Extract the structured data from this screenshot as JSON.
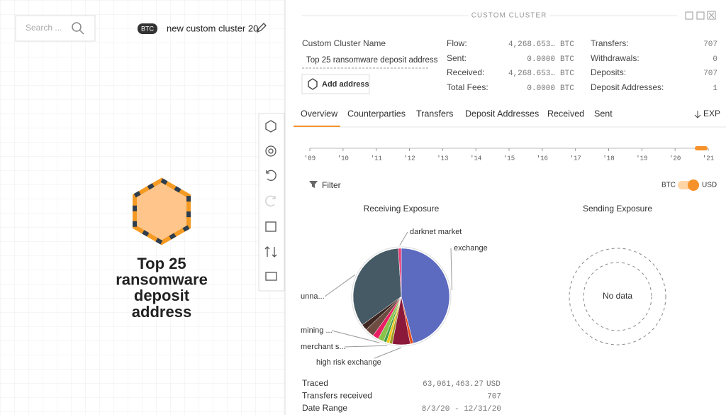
{
  "search": {
    "placeholder": "Search ..."
  },
  "cluster_tab": {
    "badge": "BTC",
    "name": "new custom cluster 20"
  },
  "graph_node": {
    "label_lines": [
      "Top 25",
      "ransomware",
      "deposit",
      "address"
    ]
  },
  "panel": {
    "title": "CUSTOM CLUSTER",
    "name_label": "Custom Cluster Name",
    "name_value": "Top 25 ransomware deposit address",
    "add_button": "Add address",
    "stats": [
      {
        "label": "Flow:",
        "value": "4,268.653…",
        "unit": "BTC"
      },
      {
        "label": "Sent:",
        "value": "0.0000",
        "unit": "BTC"
      },
      {
        "label": "Received:",
        "value": "4,268.653…",
        "unit": "BTC"
      },
      {
        "label": "Total Fees:",
        "value": "0.0000",
        "unit": "BTC"
      }
    ],
    "counts": [
      {
        "label": "Transfers:",
        "value": 707
      },
      {
        "label": "Withdrawals:",
        "value": 0
      },
      {
        "label": "Deposits:",
        "value": 707
      },
      {
        "label": "Deposit Addresses:",
        "value": 1
      }
    ],
    "tabs": [
      "Overview",
      "Counterparties",
      "Transfers",
      "Deposit Addresses",
      "Received",
      "Sent"
    ],
    "export": "EXP",
    "timeline": [
      "'09",
      "'10",
      "'11",
      "'12",
      "'13",
      "'14",
      "'15",
      "'16",
      "'17",
      "'18",
      "'19",
      "'20",
      "'21"
    ],
    "filter": "Filter",
    "toggle": {
      "left": "BTC",
      "right": "USD"
    },
    "sending": {
      "title": "Sending Exposure",
      "empty": "No data"
    },
    "summary": [
      {
        "label": "Traced",
        "value": "63,061,463.27",
        "unit": "USD"
      },
      {
        "label": "Transfers received",
        "value": "707"
      },
      {
        "label": "Date Range",
        "value": "8/3/20 - 12/31/20"
      }
    ]
  },
  "chart_data": {
    "type": "pie",
    "title": "Receiving Exposure",
    "categories": [
      "exchange",
      null,
      "high risk exchange",
      null,
      "merchant s...",
      null,
      "mining ...",
      null,
      null,
      null,
      "unna...",
      "darknet market"
    ],
    "values": [
      46,
      1,
      6,
      1,
      1,
      1,
      2,
      2,
      3,
      2,
      34,
      1
    ],
    "colors": [
      "#5c6bc0",
      "#e64a19",
      "#8b1a3a",
      "#9e9d24",
      "#f5c518",
      "#43a047",
      "#8bc34a",
      "#e91e63",
      "#6d4c41",
      "#3e2723",
      "#455a64",
      "#ec407a"
    ]
  }
}
